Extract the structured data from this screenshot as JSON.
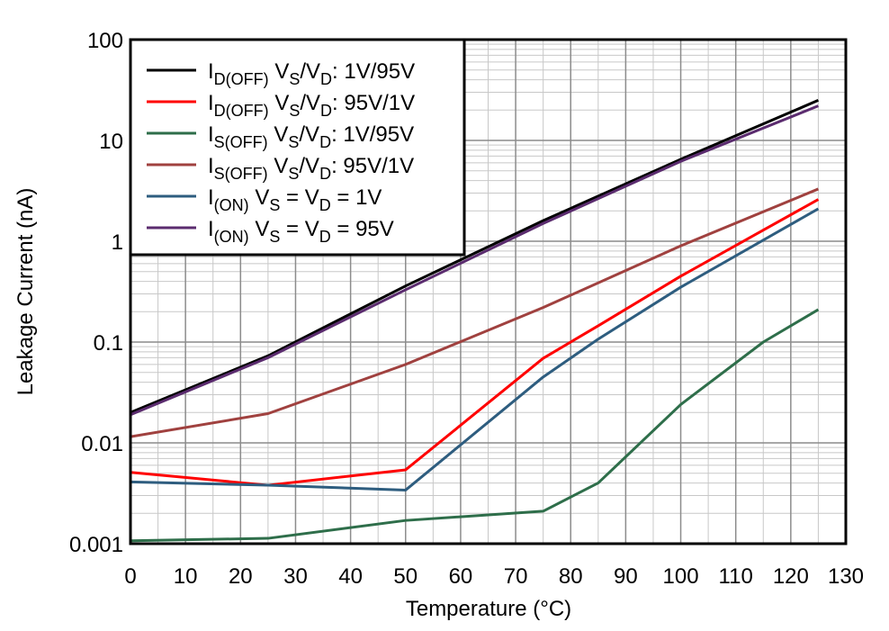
{
  "chart_data": {
    "type": "line",
    "xlabel": "Temperature (°C)",
    "ylabel": "Leakage Current (nA)",
    "xlim": [
      0,
      130
    ],
    "xticks": [
      0,
      10,
      20,
      30,
      40,
      50,
      60,
      70,
      80,
      90,
      100,
      110,
      120,
      130
    ],
    "ylim": [
      0.001,
      100
    ],
    "yticks": [
      0.001,
      0.01,
      0.1,
      1,
      10,
      100
    ],
    "log_y": true,
    "grid": true,
    "minor_grid": true,
    "legend": "upper left",
    "series": [
      {
        "name": [
          "I",
          {
            "sub": "D(OFF)"
          },
          " V",
          {
            "sub": "S"
          },
          "/V",
          {
            "sub": "D"
          },
          ": 1V/95V"
        ],
        "color": "#000000",
        "x": [
          0,
          25,
          50,
          75,
          100,
          125
        ],
        "values": [
          0.02,
          0.073,
          0.36,
          1.6,
          6.5,
          25
        ]
      },
      {
        "name": [
          "I",
          {
            "sub": "D(OFF)"
          },
          " V",
          {
            "sub": "S"
          },
          "/V",
          {
            "sub": "D"
          },
          ": 95V/1V"
        ],
        "color": "#ff0000",
        "x": [
          0,
          25,
          50,
          75,
          85,
          100,
          125
        ],
        "values": [
          0.0051,
          0.0038,
          0.0054,
          0.069,
          0.145,
          0.45,
          2.6
        ]
      },
      {
        "name": [
          "I",
          {
            "sub": "S(OFF)"
          },
          " V",
          {
            "sub": "S"
          },
          "/V",
          {
            "sub": "D"
          },
          ": 1V/95V"
        ],
        "color": "#2e6e4a",
        "x": [
          0,
          25,
          50,
          75,
          85,
          100,
          115,
          125
        ],
        "values": [
          0.00107,
          0.00113,
          0.0017,
          0.0021,
          0.004,
          0.024,
          0.1,
          0.21
        ]
      },
      {
        "name": [
          "I",
          {
            "sub": "S(OFF)"
          },
          " V",
          {
            "sub": "S"
          },
          "/V",
          {
            "sub": "D"
          },
          ": 95V/1V"
        ],
        "color": "#a0413f",
        "x": [
          0,
          25,
          50,
          75,
          100,
          125
        ],
        "values": [
          0.0115,
          0.0195,
          0.06,
          0.22,
          0.9,
          3.3
        ]
      },
      {
        "name": [
          "I",
          {
            "sub": "(ON)"
          },
          " V",
          {
            "sub": "S"
          },
          " = V",
          {
            "sub": "D"
          },
          " = 1V"
        ],
        "color": "#2e5d7f",
        "x": [
          0,
          25,
          50,
          75,
          85,
          100,
          125
        ],
        "values": [
          0.0041,
          0.0038,
          0.0034,
          0.045,
          0.107,
          0.35,
          2.1
        ]
      },
      {
        "name": [
          "I",
          {
            "sub": "(ON)"
          },
          " V",
          {
            "sub": "S"
          },
          " = V",
          {
            "sub": "D"
          },
          " = 95V"
        ],
        "color": "#5b2c6f",
        "x": [
          0,
          25,
          50,
          75,
          100,
          125
        ],
        "values": [
          0.019,
          0.07,
          0.33,
          1.5,
          6.2,
          22
        ]
      }
    ]
  }
}
